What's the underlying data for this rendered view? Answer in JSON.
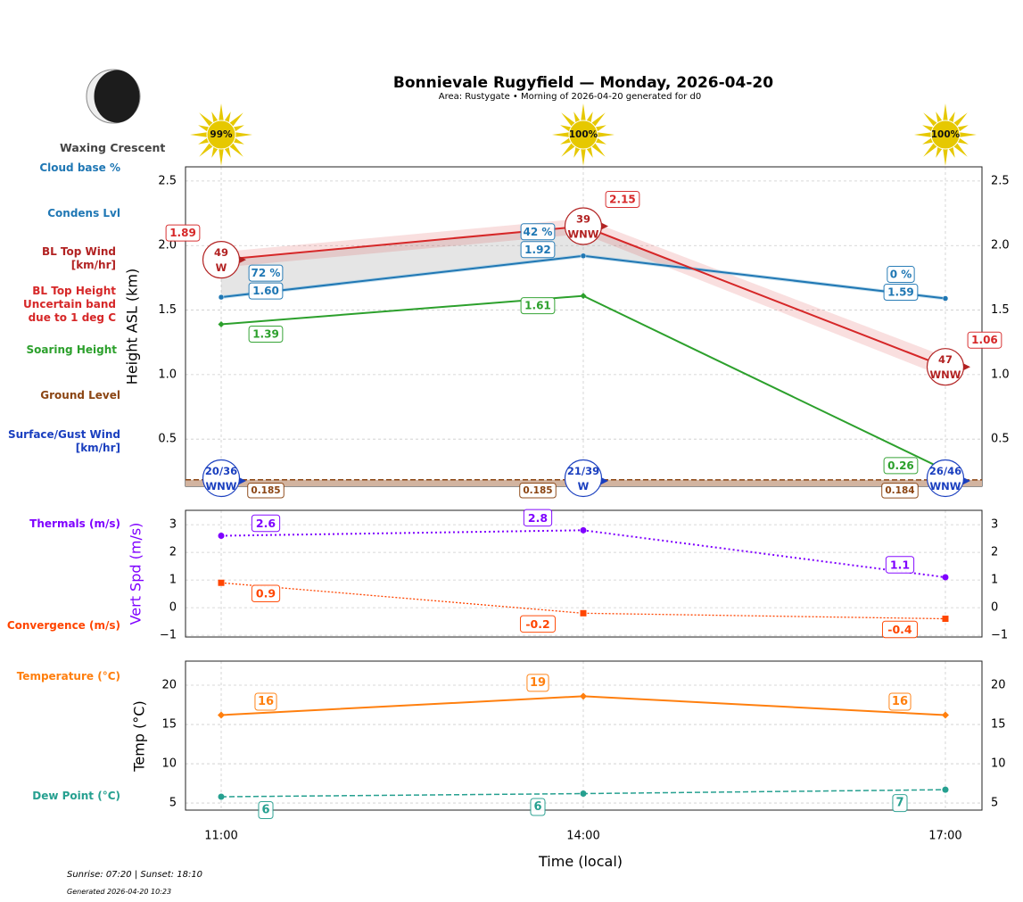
{
  "header": {
    "title": "Bonnievale Rugyfield — Monday, 2026-04-20",
    "subtitle": "Area: Rustygate • Morning of 2026-04-20 generated for d0",
    "moon_phase": "Waxing Crescent"
  },
  "footer": {
    "sun_times": "Sunrise: 07:20 | Sunset: 18:10",
    "generated": "Generated 2026-04-20 10:23"
  },
  "colors": {
    "cloud_base": "#1f77b4",
    "bl_top": "#d62728",
    "bl_wind": "#b22222",
    "soaring": "#2ca02c",
    "ground": "#8b4513",
    "ground_fill": "#d2b4a0",
    "surface_wind": "#1a3fbf",
    "thermals": "#7f00ff",
    "convergence": "#ff4500",
    "temperature": "#ff7f0e",
    "dew_point": "#26a090",
    "sun": "#e6c800"
  },
  "left_labels": {
    "cloud_base": "Cloud base %",
    "condens": "Condens Lvl",
    "bl_wind": [
      "BL Top Wind",
      "[km/hr]"
    ],
    "bl_height": [
      "BL Top Height",
      "Uncertain band",
      "due to 1 deg C"
    ],
    "soaring": "Soaring Height",
    "ground": "Ground Level",
    "surface_wind": [
      "Surface/Gust Wind",
      "[km/hr]"
    ],
    "thermals": "Thermals (m/s)",
    "convergence": "Convergence (m/s)",
    "temperature": "Temperature (°C)",
    "dew_point": "Dew Point (°C)"
  },
  "chart_data": [
    {
      "type": "line",
      "title": "Bonnievale Rugyfield — Monday, 2026-04-20",
      "xlabel": "Time (local)",
      "ylabel": "Height ASL (km)",
      "x": [
        "11:00",
        "14:00",
        "17:00"
      ],
      "xlim": [
        "10:42",
        "17:18"
      ],
      "ylim": [
        0.135,
        2.61
      ],
      "yticks": [
        "0.5",
        "1.0",
        "1.5",
        "2.0",
        "2.5"
      ],
      "grid": true,
      "sun_percent": [
        "99%",
        "100%",
        "100%"
      ],
      "series": [
        {
          "name": "Condens Lvl",
          "values": [
            1.6,
            1.92,
            1.59
          ],
          "labels": [
            "1.60",
            "1.92",
            "1.59"
          ]
        },
        {
          "name": "Cloud base %",
          "labels": [
            "72 %",
            "42 %",
            "0 %"
          ]
        },
        {
          "name": "BL Top Height",
          "values": [
            1.89,
            2.15,
            1.06
          ],
          "labels": [
            "1.89",
            "2.15",
            "1.06"
          ],
          "uncertainty": [
            0.06,
            0.06,
            0.08
          ]
        },
        {
          "name": "Soaring Height",
          "values": [
            1.39,
            1.61,
            0.26
          ],
          "labels": [
            "1.39",
            "1.61",
            "0.26"
          ]
        },
        {
          "name": "Ground Level",
          "values": [
            0.185,
            0.185,
            0.184
          ],
          "labels": [
            "0.185",
            "0.185",
            "0.184"
          ]
        },
        {
          "name": "BL Top Wind [km/hr]",
          "speed": [
            "49",
            "39",
            "47"
          ],
          "direction": [
            "W",
            "WNW",
            "WNW"
          ]
        },
        {
          "name": "Surface/Gust Wind [km/hr]",
          "speed": [
            "20/36",
            "21/39",
            "26/46"
          ],
          "direction": [
            "WNW",
            "W",
            "WNW"
          ]
        }
      ]
    },
    {
      "type": "line",
      "ylabel": "Vert Spd (m/s)",
      "x": [
        "11:00",
        "14:00",
        "17:00"
      ],
      "ylim": [
        -1.06,
        3.52
      ],
      "yticks": [
        "−1",
        "0",
        "1",
        "2",
        "3"
      ],
      "grid": true,
      "series": [
        {
          "name": "Thermals (m/s)",
          "values": [
            2.6,
            2.8,
            1.1
          ],
          "labels": [
            "2.6",
            "2.8",
            "1.1"
          ]
        },
        {
          "name": "Convergence (m/s)",
          "values": [
            0.9,
            -0.2,
            -0.4
          ],
          "labels": [
            "0.9",
            "-0.2",
            "-0.4"
          ]
        }
      ]
    },
    {
      "type": "line",
      "ylabel": "Temp (°C)",
      "xlabel": "Time (local)",
      "x": [
        "11:00",
        "14:00",
        "17:00"
      ],
      "xticks": [
        "11:00",
        "14:00",
        "17:00"
      ],
      "ylim": [
        4.1,
        23.07
      ],
      "yticks": [
        "5",
        "10",
        "15",
        "20"
      ],
      "grid": true,
      "series": [
        {
          "name": "Temperature (°C)",
          "values": [
            16.2,
            18.6,
            16.2
          ],
          "labels": [
            "16",
            "19",
            "16"
          ]
        },
        {
          "name": "Dew Point (°C)",
          "values": [
            5.8,
            6.2,
            6.7
          ],
          "labels": [
            "6",
            "6",
            "7"
          ]
        }
      ]
    }
  ]
}
